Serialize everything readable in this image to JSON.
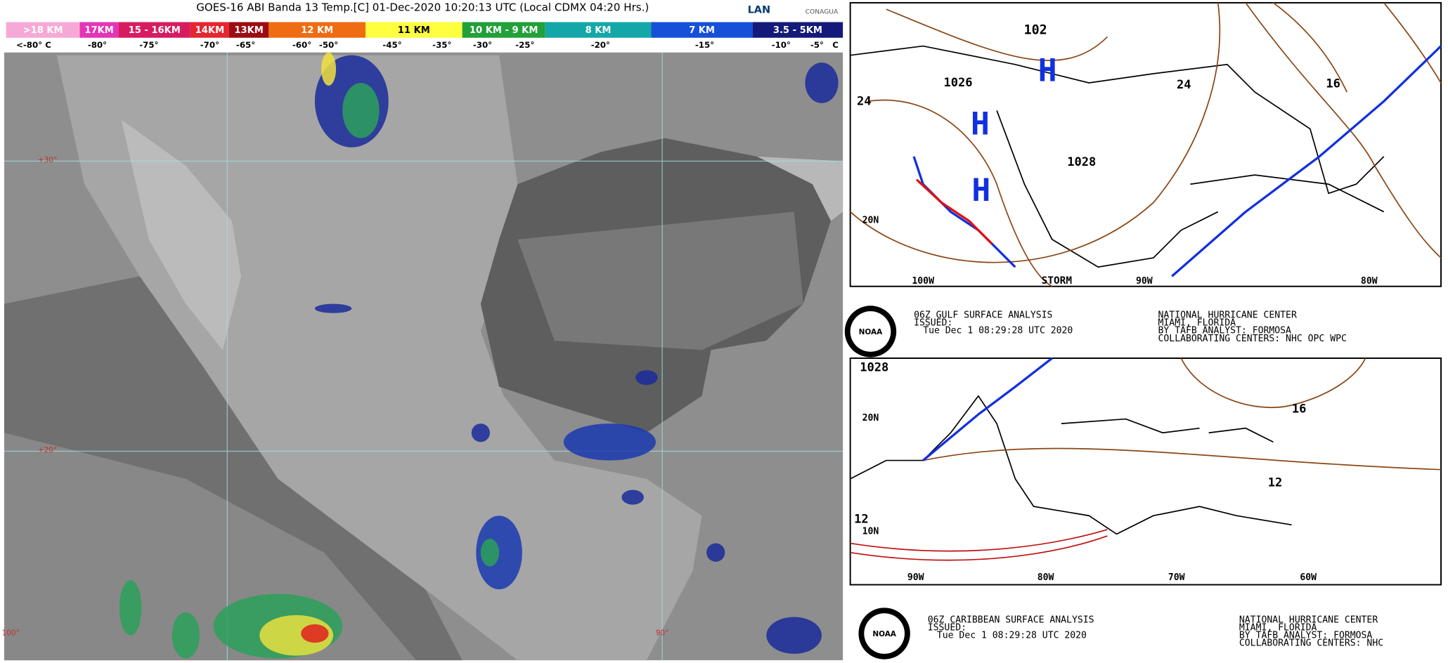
{
  "satellite": {
    "title": "GOES-16 ABI Banda 13 Temp.[C] 01-Dec-2020 10:20:13 UTC (Local CDMX  04:20 Hrs.)",
    "logos": [
      "LAN",
      "CONAGUA"
    ],
    "height_bands": [
      ">18 KM",
      "17KM",
      "15 - 16KM",
      "14KM",
      "13KM",
      "12 KM",
      "11 KM",
      "10 KM - 9 KM",
      "8 KM",
      "7 KM",
      "3.5 - 5KM"
    ],
    "temperatures": [
      "<-80° C",
      "-80°",
      "-75°",
      "-70°",
      "-65°",
      "-60°",
      "-50°",
      "-45°",
      "-35°",
      "-30°",
      "-25°",
      "-20°",
      "-15°",
      "-10°",
      "-5°",
      "C"
    ],
    "grid_labels": [
      "+30°",
      "+20°",
      "100°",
      "90°"
    ]
  },
  "gulf_map": {
    "labels": [
      "102",
      "1026",
      "1028",
      "24",
      "24",
      "16",
      "H",
      "H",
      "H",
      "20N",
      "100W",
      "90W",
      "80W",
      "STORM"
    ],
    "caption": {
      "logo": "NOAA",
      "lines": [
        "06Z GULF SURFACE ANALYSIS",
        "ISSUED:",
        "Tue Dec  1 08:29:28 UTC 2020"
      ],
      "center": [
        "NATIONAL HURRICANE CENTER",
        "MIAMI, FLORIDA",
        "BY TAFB ANALYST: FORMOSA",
        "COLLABORATING CENTERS: NHC OPC WPC"
      ]
    }
  },
  "caribbean_map": {
    "labels": [
      "1028",
      "20N",
      "16",
      "12",
      "12",
      "10N",
      "90W",
      "80W",
      "70W",
      "60W"
    ],
    "caption": {
      "logo": "NOAA",
      "lines": [
        "06Z CARIBBEAN SURFACE ANALYSIS",
        "ISSUED:",
        "Tue Dec  1 08:29:28 UTC 2020"
      ],
      "center": [
        "NATIONAL HURRICANE CENTER",
        "MIAMI, FLORIDA",
        "BY TAFB ANALYST: FORMOSA",
        "COLLABORATING CENTERS: NHC"
      ]
    }
  }
}
